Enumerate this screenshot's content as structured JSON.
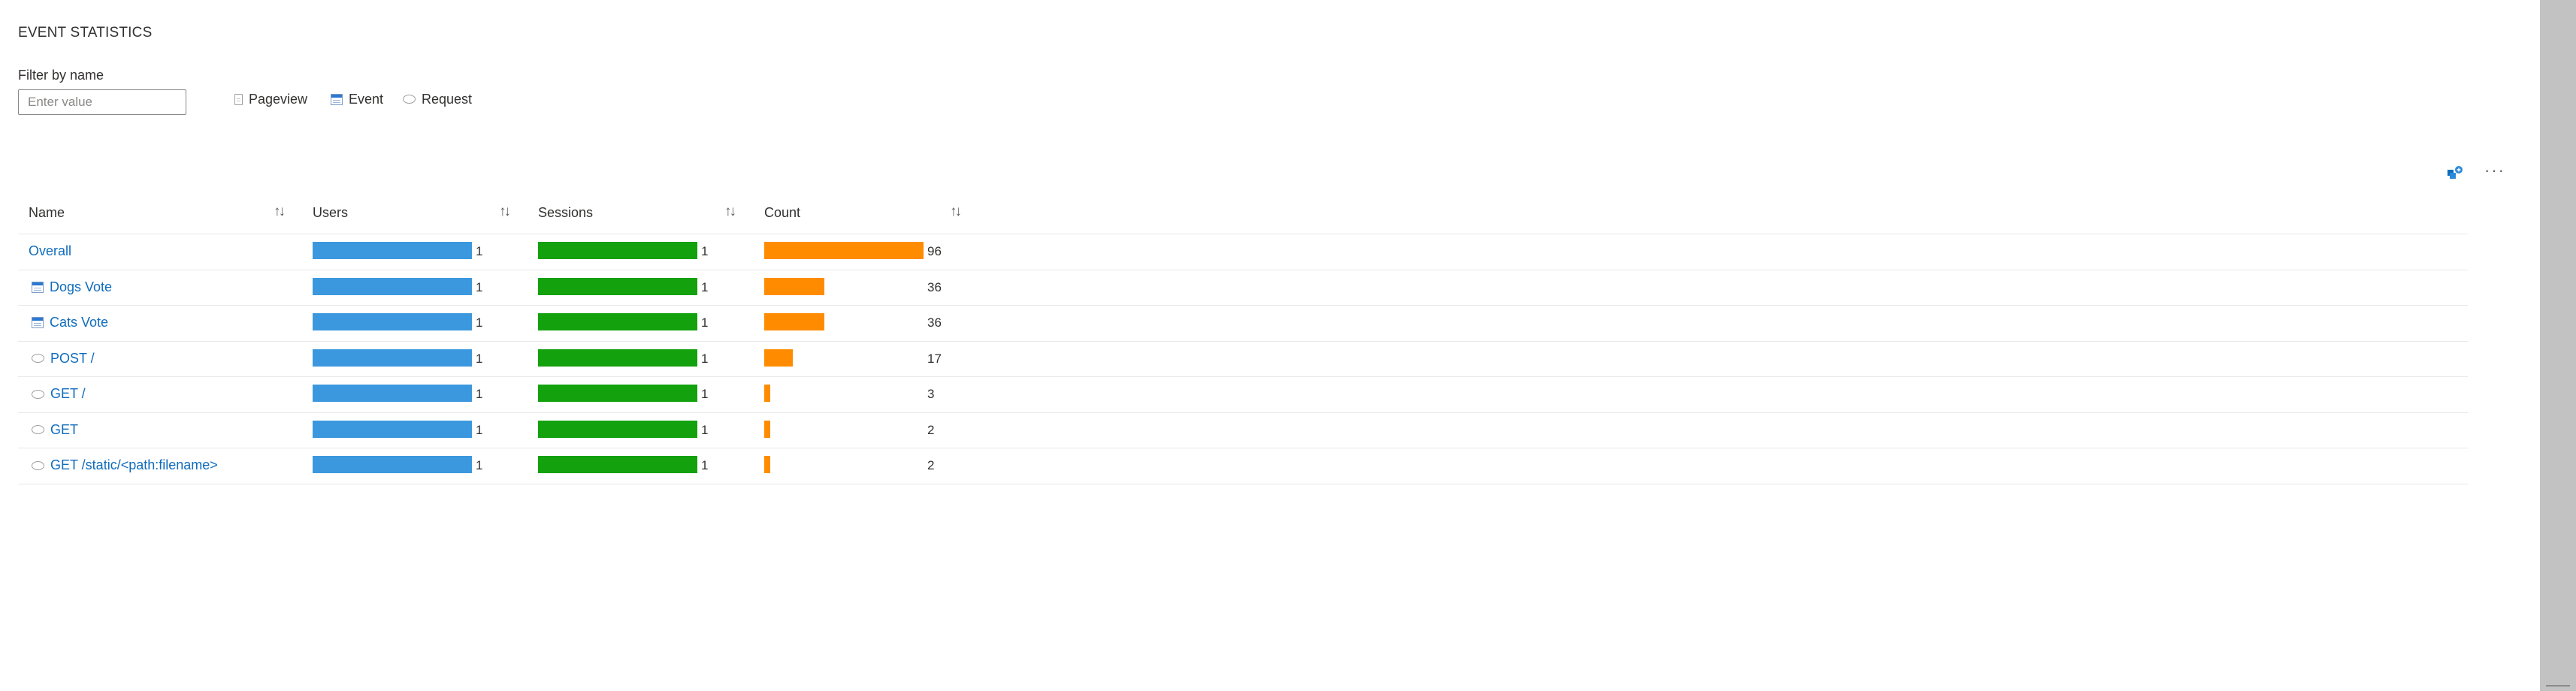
{
  "page": {
    "title": "EVENT STATISTICS"
  },
  "filter": {
    "label": "Filter by name",
    "placeholder": "Enter value"
  },
  "legend": [
    {
      "label": "Pageview",
      "icon": "pageview-icon"
    },
    {
      "label": "Event",
      "icon": "event-icon"
    },
    {
      "label": "Request",
      "icon": "request-icon"
    }
  ],
  "toolbar": {
    "more": "···"
  },
  "columns": {
    "name": "Name",
    "users": "Users",
    "sessions": "Sessions",
    "count": "Count",
    "sort": "↑↓"
  },
  "colors": {
    "users": "#3b98de",
    "sessions": "#13a10e",
    "count": "#ff8c00",
    "link": "#0f6cbd"
  },
  "max_count": 96,
  "rows": [
    {
      "name": "Overall",
      "type": "",
      "users": "1",
      "sessions": "1",
      "count": "96",
      "users_fill": 1,
      "sessions_fill": 1,
      "count_value": 96
    },
    {
      "name": "Dogs Vote",
      "type": "event",
      "users": "1",
      "sessions": "1",
      "count": "36",
      "users_fill": 1,
      "sessions_fill": 1,
      "count_value": 36
    },
    {
      "name": "Cats Vote",
      "type": "event",
      "users": "1",
      "sessions": "1",
      "count": "36",
      "users_fill": 1,
      "sessions_fill": 1,
      "count_value": 36
    },
    {
      "name": "POST /",
      "type": "request",
      "users": "1",
      "sessions": "1",
      "count": "17",
      "users_fill": 1,
      "sessions_fill": 1,
      "count_value": 17
    },
    {
      "name": "GET /",
      "type": "request",
      "users": "1",
      "sessions": "1",
      "count": "3",
      "users_fill": 1,
      "sessions_fill": 1,
      "count_value": 3
    },
    {
      "name": "GET",
      "type": "request",
      "users": "1",
      "sessions": "1",
      "count": "2",
      "users_fill": 1,
      "sessions_fill": 1,
      "count_value": 2
    },
    {
      "name": "GET /static/<path:filename>",
      "type": "request",
      "users": "1",
      "sessions": "1",
      "count": "2",
      "users_fill": 1,
      "sessions_fill": 1,
      "count_value": 2
    }
  ]
}
